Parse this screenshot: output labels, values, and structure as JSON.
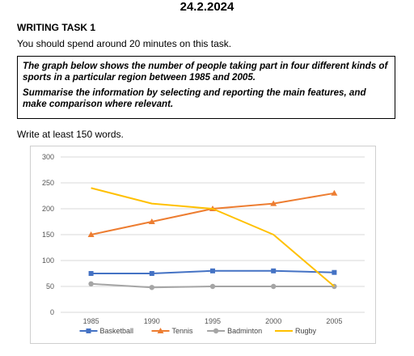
{
  "header": {
    "date": "24.2.2024"
  },
  "task": {
    "title": "WRITING TASK 1",
    "time_instruction": "You should spend around 20 minutes on this task.",
    "prompt_1": "The graph below shows the number of people taking part in four different kinds of sports in a particular region between 1985 and 2005.",
    "prompt_2": "Summarise the information by selecting and reporting the main features, and make comparison where relevant.",
    "word_requirement": "Write at least 150 words."
  },
  "chart_data": {
    "type": "line",
    "title": "",
    "xlabel": "",
    "ylabel": "",
    "x": [
      "1985",
      "1990",
      "1995",
      "2000",
      "2005"
    ],
    "ylim": [
      0,
      300
    ],
    "yticks": [
      0,
      50,
      100,
      150,
      200,
      250,
      300
    ],
    "grid": true,
    "legend_position": "bottom",
    "series": [
      {
        "name": "Basketball",
        "color": "#4472C4",
        "marker": "square",
        "values": [
          75,
          75,
          80,
          80,
          77
        ]
      },
      {
        "name": "Tennis",
        "color": "#ED7D31",
        "marker": "triangle",
        "values": [
          150,
          175,
          200,
          210,
          230
        ]
      },
      {
        "name": "Badminton",
        "color": "#A5A5A5",
        "marker": "circle",
        "values": [
          55,
          48,
          50,
          50,
          50
        ]
      },
      {
        "name": "Rugby",
        "color": "#FFC000",
        "marker": "none",
        "values": [
          240,
          210,
          200,
          150,
          50
        ]
      }
    ]
  }
}
